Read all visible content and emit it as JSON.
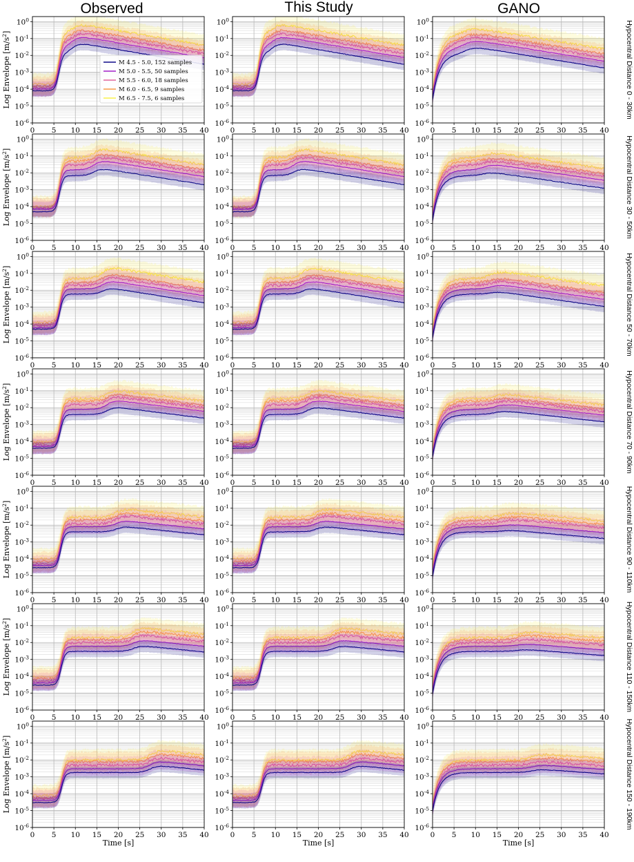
{
  "figure": {
    "column_titles": [
      "Observed",
      "This Study",
      "GANO"
    ],
    "row_labels": [
      "Hypocentral Distance 0 - 30km",
      "Hypocentral Distance 30 - 50km",
      "Hypocentral Distance 50 - 70km",
      "Hypocentral Distance 70 - 90km",
      "Hypocentral Distance 90 - 110km",
      "Hypocentral Distance 110 - 150km",
      "Hypocentral Distance 150 - 190km"
    ],
    "ylabel_base": "Log Envelope [m/s",
    "ylabel_sup": "2",
    "ylabel_end": "]",
    "xlabel": "Time [s]",
    "x_tick_labels": [
      "0",
      "5",
      "10",
      "15",
      "20",
      "25",
      "30",
      "35",
      "40"
    ],
    "y_tick_base": "10",
    "y_tick_exponents": [
      "0",
      "-1",
      "-2",
      "-3",
      "-4",
      "-5",
      "-6"
    ],
    "legend": [
      {
        "label": "M 4.5 - 5.0, 152 samples",
        "color": "#0d0887"
      },
      {
        "label": "M 5.0 - 5.5, 50 samples",
        "color": "#a21ec8"
      },
      {
        "label": "M 5.5 - 6.0, 18 samples",
        "color": "#e2639b"
      },
      {
        "label": "M 6.0 - 6.5, 9 samples",
        "color": "#f99a45"
      },
      {
        "label": "M 6.5 - 7.5, 6 samples",
        "color": "#f8f048"
      }
    ]
  },
  "chart_data": {
    "type": "line",
    "description_axes": {
      "xlim": [
        0,
        40
      ],
      "ylim": [
        1e-06,
        2
      ],
      "yscale": "log",
      "grid": true
    },
    "series": [
      {
        "name": "M 4.5 - 5.0, 152 samples",
        "color": "#0d0887"
      },
      {
        "name": "M 5.0 - 5.5, 50 samples",
        "color": "#a21ec8"
      },
      {
        "name": "M 5.5 - 6.0, 18 samples",
        "color": "#e2639b"
      },
      {
        "name": "M 6.0 - 6.5, 9 samples",
        "color": "#f99a45"
      },
      {
        "name": "M 6.5 - 7.5, 6 samples",
        "color": "#f8f048"
      }
    ],
    "panels": {
      "pre_event_level": [
        [
          8e-05,
          5e-05,
          5e-05,
          4e-05,
          3e-05,
          3e-05,
          3e-05
        ],
        [
          0.0001,
          7e-05,
          6e-05,
          5e-05,
          4e-05,
          4e-05,
          4e-05
        ],
        [
          0.00012,
          8e-05,
          8e-05,
          6e-05,
          5e-05,
          5e-05,
          5e-05
        ],
        [
          0.00015,
          9e-05,
          0.0001,
          8e-05,
          7e-05,
          7e-05,
          6e-05
        ],
        [
          0.0002,
          0.0001,
          0.00013,
          0.0001,
          0.0001,
          9e-05,
          8e-05
        ]
      ],
      "p_arrival_level": [
        [
          0.012,
          0.007,
          0.006,
          0.004,
          0.004,
          0.003,
          0.0018
        ],
        [
          0.03,
          0.015,
          0.012,
          0.008,
          0.008,
          0.006,
          0.003
        ],
        [
          0.06,
          0.03,
          0.02,
          0.015,
          0.012,
          0.01,
          0.005
        ],
        [
          0.1,
          0.05,
          0.03,
          0.025,
          0.02,
          0.015,
          0.008
        ],
        [
          0.2,
          0.08,
          0.05,
          0.035,
          0.03,
          0.02,
          0.01
        ]
      ],
      "peak_level": [
        [
          0.06,
          0.02,
          0.015,
          0.012,
          0.009,
          0.007,
          0.005
        ],
        [
          0.15,
          0.06,
          0.04,
          0.03,
          0.02,
          0.015,
          0.009
        ],
        [
          0.25,
          0.1,
          0.07,
          0.05,
          0.04,
          0.03,
          0.015
        ],
        [
          0.4,
          0.15,
          0.1,
          0.07,
          0.06,
          0.05,
          0.025
        ],
        [
          0.8,
          0.3,
          0.25,
          0.12,
          0.1,
          0.08,
          0.04
        ]
      ],
      "s_arrival_time": [
        10,
        15,
        17,
        18,
        20,
        24,
        28
      ],
      "end_level_ratio": [
        0.05,
        0.1,
        0.12,
        0.2,
        0.3,
        0.4,
        0.5
      ]
    }
  }
}
